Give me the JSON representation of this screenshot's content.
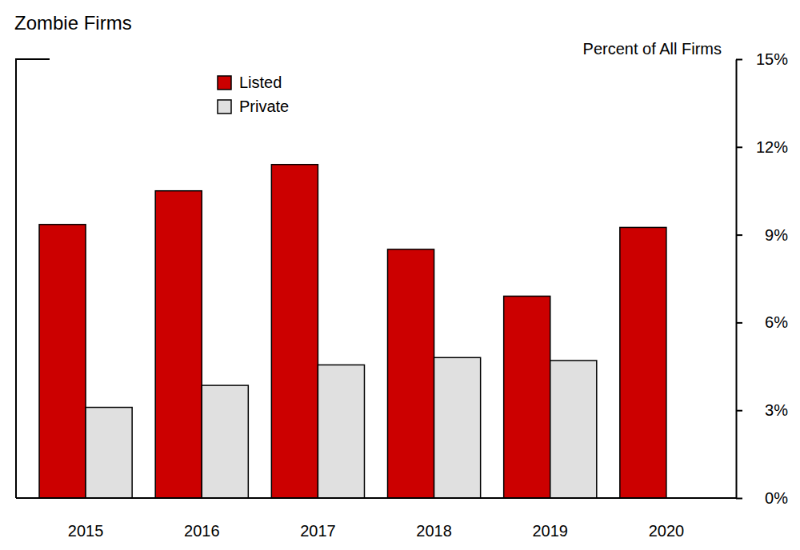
{
  "chart_data": {
    "type": "bar",
    "title": "Zombie Firms",
    "y_label": "Percent of All Firms",
    "categories": [
      "2015",
      "2016",
      "2017",
      "2018",
      "2019",
      "2020"
    ],
    "series": [
      {
        "name": "Listed",
        "color": "#cc0000",
        "values": [
          9.35,
          10.5,
          11.4,
          8.5,
          6.9,
          9.25
        ]
      },
      {
        "name": "Private",
        "color": "#e0e0e0",
        "values": [
          3.1,
          3.85,
          4.55,
          4.8,
          4.7,
          null
        ]
      }
    ],
    "ylim": [
      0,
      15
    ],
    "yticks": [
      {
        "value": 0,
        "label": "0%"
      },
      {
        "value": 3,
        "label": "3%"
      },
      {
        "value": 6,
        "label": "6%"
      },
      {
        "value": 9,
        "label": "9%"
      },
      {
        "value": 12,
        "label": "12%"
      },
      {
        "value": 15,
        "label": "15%"
      }
    ],
    "legend": "top"
  }
}
